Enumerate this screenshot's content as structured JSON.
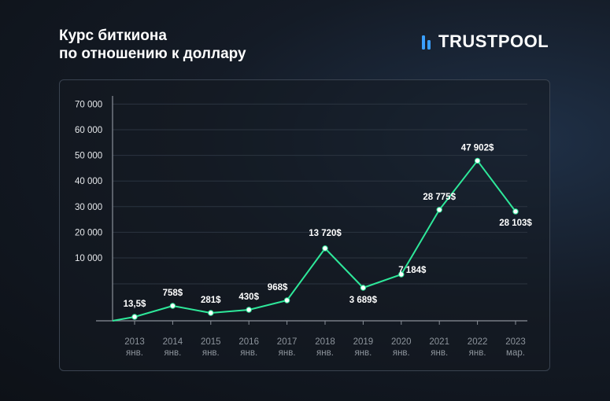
{
  "header": {
    "title_line1": "Курс биткиона",
    "title_line2": "по отношению к доллару"
  },
  "brand": {
    "name": "TRUSTPOOL",
    "icon": "trustpool-logo-icon",
    "accent": "#3aa0ff"
  },
  "colors": {
    "line": "#2ee89a",
    "point": "#ffffff",
    "grid": "#2b3440",
    "axis": "#8a9099"
  },
  "chart_data": {
    "type": "line",
    "title": "Курс биткиона по отношению к доллару",
    "y_ticks": [
      "10 000",
      "20 000",
      "30 000",
      "40 000",
      "50 000",
      "60 000",
      "70 000"
    ],
    "ylim": [
      0,
      70000
    ],
    "grid": true,
    "categories": [
      {
        "year": "2013",
        "month": "янв."
      },
      {
        "year": "2014",
        "month": "янв."
      },
      {
        "year": "2015",
        "month": "янв."
      },
      {
        "year": "2016",
        "month": "янв."
      },
      {
        "year": "2017",
        "month": "янв."
      },
      {
        "year": "2018",
        "month": "янв."
      },
      {
        "year": "2019",
        "month": "янв."
      },
      {
        "year": "2020",
        "month": "янв."
      },
      {
        "year": "2021",
        "month": "янв."
      },
      {
        "year": "2022",
        "month": "янв."
      },
      {
        "year": "2023",
        "month": "мар."
      }
    ],
    "values": [
      13.5,
      758,
      281,
      430,
      968,
      13720,
      3689,
      7184,
      28775,
      47902,
      28103
    ],
    "labels": [
      "13,5$",
      "758$",
      "281$",
      "430$",
      "968$",
      "13 720$",
      "3 689$",
      "7 184$",
      "28 775$",
      "47 902$",
      "28 103$"
    ]
  }
}
